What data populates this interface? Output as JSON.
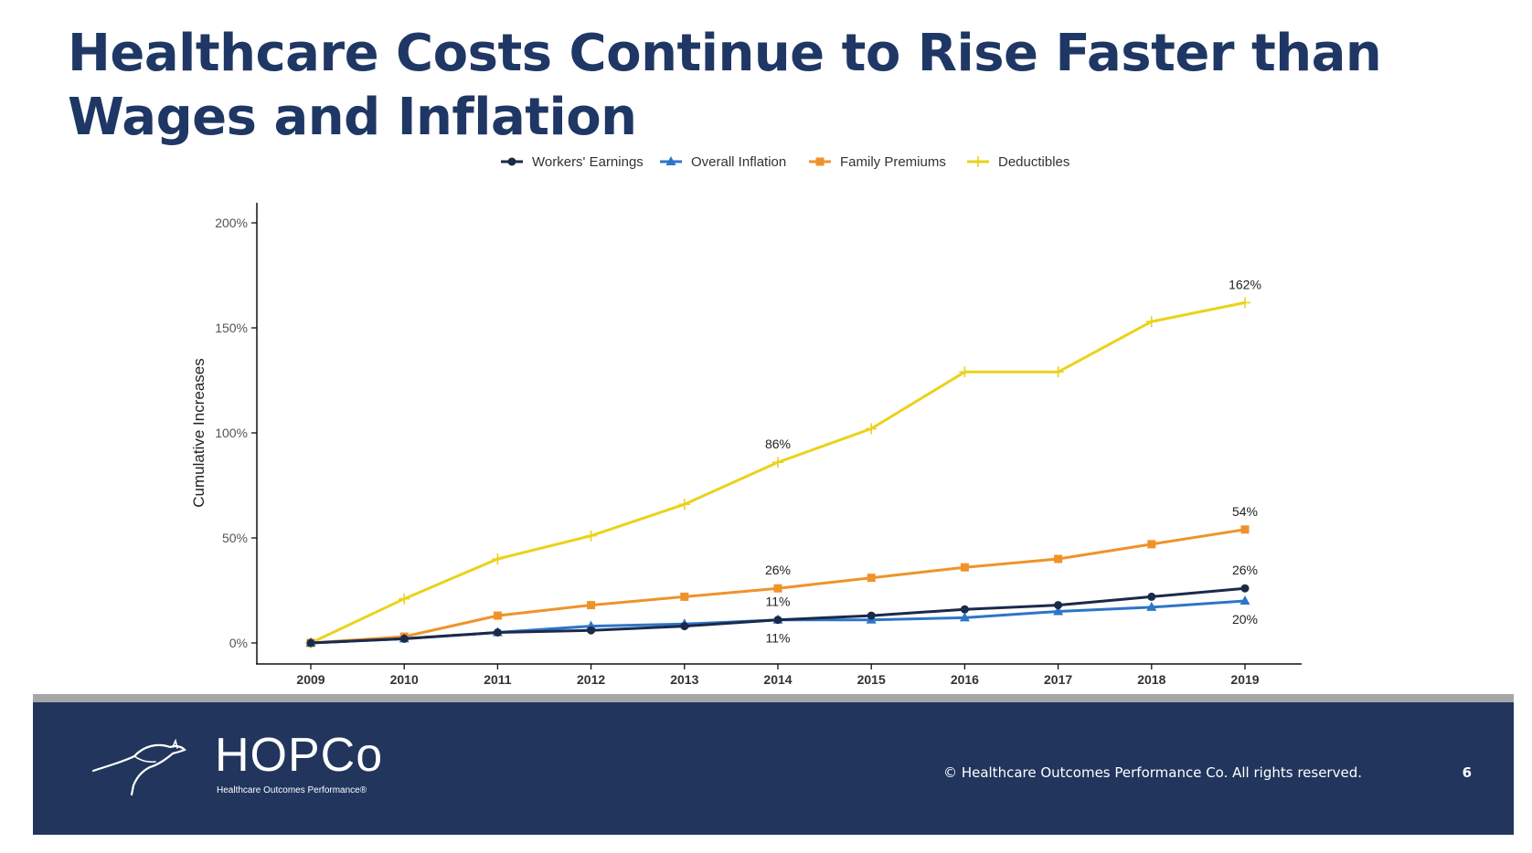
{
  "slide": {
    "title": "Healthcare Costs Continue to Rise Faster than Wages and Inflation"
  },
  "chart_data": {
    "type": "line",
    "title": "",
    "xlabel": "",
    "ylabel": "Cumulative Increases",
    "x": [
      "2009",
      "2010",
      "2011",
      "2012",
      "2013",
      "2014",
      "2015",
      "2016",
      "2017",
      "2018",
      "2019"
    ],
    "ylim": [
      0,
      200
    ],
    "yticks": [
      0,
      50,
      100,
      150,
      200
    ],
    "ytick_labels": [
      "0%",
      "50%",
      "100%",
      "150%",
      "200%"
    ],
    "grid": false,
    "legend_position": "top-center",
    "series": [
      {
        "name": "Workers' Earnings",
        "color": "#1b2a4a",
        "marker": "circle",
        "values": [
          0,
          2,
          5,
          6,
          8,
          11,
          13,
          16,
          18,
          22,
          26
        ]
      },
      {
        "name": "Overall Inflation",
        "color": "#2e75c8",
        "marker": "triangle",
        "values": [
          0,
          2,
          5,
          8,
          9,
          11,
          11,
          12,
          15,
          17,
          20
        ]
      },
      {
        "name": "Family Premiums",
        "color": "#f0922a",
        "marker": "square",
        "values": [
          0,
          3,
          13,
          18,
          22,
          26,
          31,
          36,
          40,
          47,
          54
        ]
      },
      {
        "name": "Deductibles",
        "color": "#ebd21a",
        "marker": "plus",
        "values": [
          0,
          21,
          40,
          51,
          66,
          86,
          102,
          129,
          129,
          153,
          162
        ]
      }
    ],
    "annotations": [
      {
        "text": "86%",
        "x": "2014",
        "series": "Deductibles",
        "placement": "above"
      },
      {
        "text": "162%",
        "x": "2019",
        "series": "Deductibles",
        "placement": "above"
      },
      {
        "text": "26%",
        "x": "2014",
        "series": "Family Premiums",
        "placement": "above"
      },
      {
        "text": "54%",
        "x": "2019",
        "series": "Family Premiums",
        "placement": "above"
      },
      {
        "text": "11%",
        "x": "2014",
        "series": "Workers' Earnings",
        "placement": "above"
      },
      {
        "text": "26%",
        "x": "2019",
        "series": "Workers' Earnings",
        "placement": "above"
      },
      {
        "text": "11%",
        "x": "2014",
        "series": "Overall Inflation",
        "placement": "below"
      },
      {
        "text": "20%",
        "x": "2019",
        "series": "Overall Inflation",
        "placement": "below"
      }
    ]
  },
  "footer": {
    "logo_name": "HOPCo",
    "logo_tagline": "Healthcare Outcomes Performance®",
    "copyright": "© Healthcare Outcomes Performance Co. All rights reserved.",
    "page_number": "6"
  }
}
